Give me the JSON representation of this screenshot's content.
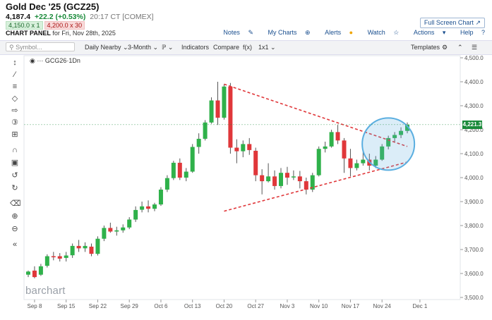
{
  "header": {
    "title": "Gold Dec '25 (GCZ25)",
    "last": "4,187.4",
    "change": "+22.2 (+0.53%)",
    "time": "20:17 CT [COMEX]",
    "bid": "4,150.0 x 1",
    "ask": "4,200.0 x 30",
    "panel_label": "CHART PANEL",
    "panel_date": "for Fri, Nov 28th, 2025",
    "fullscreen_label": "Full Screen Chart",
    "links": {
      "notes": "Notes",
      "mycharts": "My Charts",
      "alerts": "Alerts",
      "watch": "Watch",
      "actions": "Actions",
      "help": "Help"
    }
  },
  "toolbar": {
    "symbol_placeholder": "Symbol...",
    "period": "Daily Nearby",
    "range": "3-Month",
    "indicators": "Indicators",
    "compare": "Compare",
    "fx": "f(x)",
    "layout": "1x1",
    "templates": "Templates"
  },
  "legend": {
    "symbol": "GCG26",
    "interval": "1Dn"
  },
  "watermark": "barchart",
  "colors": {
    "up": "#2fb14a",
    "down": "#e0373a",
    "trendline": "#e0373a",
    "circle": "#5aaee0",
    "last_price": "#1a8a3a"
  },
  "chart_data": {
    "type": "candlestick",
    "symbol": "GCG26",
    "x_tick_labels": [
      "Sep 8",
      "Sep 15",
      "Sep 22",
      "Sep 29",
      "Oct 6",
      "Oct 13",
      "Oct 20",
      "Oct 27",
      "Nov 3",
      "Nov 10",
      "Nov 17",
      "Nov 24",
      "Dec 1"
    ],
    "y_tick_labels": [
      "3,500.0",
      "3,600.0",
      "3,700.0",
      "3,800.0",
      "3,900.0",
      "4,000.0",
      "4,100.0",
      "4,200.0",
      "4,300.0",
      "4,400.0",
      "4,500.0"
    ],
    "ylim": [
      3500,
      4500
    ],
    "last_price_label": "4,221.3",
    "candles": [
      {
        "date": "Sep 5",
        "o": 3595,
        "h": 3612,
        "l": 3585,
        "c": 3608
      },
      {
        "date": "Sep 8",
        "o": 3612,
        "h": 3630,
        "l": 3580,
        "c": 3585
      },
      {
        "date": "Sep 9",
        "o": 3595,
        "h": 3640,
        "l": 3590,
        "c": 3630
      },
      {
        "date": "Sep 10",
        "o": 3632,
        "h": 3680,
        "l": 3625,
        "c": 3672
      },
      {
        "date": "Sep 11",
        "o": 3672,
        "h": 3690,
        "l": 3655,
        "c": 3670
      },
      {
        "date": "Sep 12",
        "o": 3672,
        "h": 3685,
        "l": 3650,
        "c": 3662
      },
      {
        "date": "Sep 15",
        "o": 3665,
        "h": 3690,
        "l": 3650,
        "c": 3675
      },
      {
        "date": "Sep 16",
        "o": 3676,
        "h": 3725,
        "l": 3665,
        "c": 3715
      },
      {
        "date": "Sep 17",
        "o": 3715,
        "h": 3740,
        "l": 3690,
        "c": 3705
      },
      {
        "date": "Sep 18",
        "o": 3705,
        "h": 3730,
        "l": 3690,
        "c": 3715
      },
      {
        "date": "Sep 19",
        "o": 3712,
        "h": 3725,
        "l": 3672,
        "c": 3682
      },
      {
        "date": "Sep 22",
        "o": 3682,
        "h": 3755,
        "l": 3675,
        "c": 3745
      },
      {
        "date": "Sep 23",
        "o": 3745,
        "h": 3800,
        "l": 3735,
        "c": 3790
      },
      {
        "date": "Sep 24",
        "o": 3790,
        "h": 3812,
        "l": 3770,
        "c": 3775
      },
      {
        "date": "Sep 25",
        "o": 3775,
        "h": 3795,
        "l": 3758,
        "c": 3780
      },
      {
        "date": "Sep 26",
        "o": 3780,
        "h": 3805,
        "l": 3770,
        "c": 3792
      },
      {
        "date": "Sep 29",
        "o": 3792,
        "h": 3835,
        "l": 3785,
        "c": 3825
      },
      {
        "date": "Sep 30",
        "o": 3825,
        "h": 3880,
        "l": 3815,
        "c": 3865
      },
      {
        "date": "Oct 1",
        "o": 3866,
        "h": 3900,
        "l": 3855,
        "c": 3880
      },
      {
        "date": "Oct 2",
        "o": 3880,
        "h": 3905,
        "l": 3855,
        "c": 3870
      },
      {
        "date": "Oct 3",
        "o": 3870,
        "h": 3895,
        "l": 3860,
        "c": 3888
      },
      {
        "date": "Oct 6",
        "o": 3888,
        "h": 3960,
        "l": 3882,
        "c": 3950
      },
      {
        "date": "Oct 7",
        "o": 3950,
        "h": 4010,
        "l": 3940,
        "c": 3998
      },
      {
        "date": "Oct 8",
        "o": 3998,
        "h": 4070,
        "l": 3990,
        "c": 4062
      },
      {
        "date": "Oct 9",
        "o": 4062,
        "h": 4080,
        "l": 3990,
        "c": 4000
      },
      {
        "date": "Oct 10",
        "o": 4000,
        "h": 4040,
        "l": 3985,
        "c": 4025
      },
      {
        "date": "Oct 13",
        "o": 4025,
        "h": 4140,
        "l": 4020,
        "c": 4128
      },
      {
        "date": "Oct 14",
        "o": 4128,
        "h": 4185,
        "l": 4100,
        "c": 4162
      },
      {
        "date": "Oct 15",
        "o": 4162,
        "h": 4240,
        "l": 4155,
        "c": 4230
      },
      {
        "date": "Oct 16",
        "o": 4230,
        "h": 4335,
        "l": 4225,
        "c": 4322
      },
      {
        "date": "Oct 17",
        "o": 4322,
        "h": 4400,
        "l": 4220,
        "c": 4250
      },
      {
        "date": "Oct 20",
        "o": 4250,
        "h": 4390,
        "l": 4242,
        "c": 4380
      },
      {
        "date": "Oct 21",
        "o": 4380,
        "h": 4395,
        "l": 4100,
        "c": 4125
      },
      {
        "date": "Oct 22",
        "o": 4125,
        "h": 4160,
        "l": 4060,
        "c": 4110
      },
      {
        "date": "Oct 23",
        "o": 4110,
        "h": 4155,
        "l": 4085,
        "c": 4140
      },
      {
        "date": "Oct 24",
        "o": 4140,
        "h": 4165,
        "l": 4095,
        "c": 4115
      },
      {
        "date": "Oct 27",
        "o": 4112,
        "h": 4125,
        "l": 3985,
        "c": 4010
      },
      {
        "date": "Oct 28",
        "o": 4010,
        "h": 4035,
        "l": 3930,
        "c": 3985
      },
      {
        "date": "Oct 29",
        "o": 3985,
        "h": 4060,
        "l": 3980,
        "c": 4005
      },
      {
        "date": "Oct 30",
        "o": 4005,
        "h": 4030,
        "l": 3950,
        "c": 3965
      },
      {
        "date": "Oct 31",
        "o": 3965,
        "h": 4040,
        "l": 3955,
        "c": 4020
      },
      {
        "date": "Nov 3",
        "o": 4020,
        "h": 4045,
        "l": 3970,
        "c": 4000
      },
      {
        "date": "Nov 4",
        "o": 4002,
        "h": 4030,
        "l": 3990,
        "c": 4005
      },
      {
        "date": "Nov 5",
        "o": 4005,
        "h": 4028,
        "l": 3955,
        "c": 3985
      },
      {
        "date": "Nov 6",
        "o": 3985,
        "h": 4000,
        "l": 3930,
        "c": 3950
      },
      {
        "date": "Nov 7",
        "o": 3950,
        "h": 4020,
        "l": 3940,
        "c": 4010
      },
      {
        "date": "Nov 10",
        "o": 4010,
        "h": 4130,
        "l": 4005,
        "c": 4120
      },
      {
        "date": "Nov 11",
        "o": 4120,
        "h": 4150,
        "l": 4105,
        "c": 4130
      },
      {
        "date": "Nov 12",
        "o": 4130,
        "h": 4200,
        "l": 4125,
        "c": 4190
      },
      {
        "date": "Nov 13",
        "o": 4190,
        "h": 4220,
        "l": 4140,
        "c": 4155
      },
      {
        "date": "Nov 14",
        "o": 4155,
        "h": 4165,
        "l": 4020,
        "c": 4080
      },
      {
        "date": "Nov 17",
        "o": 4080,
        "h": 4120,
        "l": 4005,
        "c": 4040
      },
      {
        "date": "Nov 18",
        "o": 4040,
        "h": 4075,
        "l": 4030,
        "c": 4060
      },
      {
        "date": "Nov 19",
        "o": 4060,
        "h": 4110,
        "l": 4050,
        "c": 4075
      },
      {
        "date": "Nov 20",
        "o": 4075,
        "h": 4100,
        "l": 4030,
        "c": 4050
      },
      {
        "date": "Nov 21",
        "o": 4050,
        "h": 4090,
        "l": 4040,
        "c": 4075
      },
      {
        "date": "Nov 24",
        "o": 4075,
        "h": 4140,
        "l": 4070,
        "c": 4130
      },
      {
        "date": "Nov 25",
        "o": 4130,
        "h": 4175,
        "l": 4118,
        "c": 4165
      },
      {
        "date": "Nov 26",
        "o": 4165,
        "h": 4190,
        "l": 4150,
        "c": 4178
      },
      {
        "date": "Nov 27",
        "o": 4178,
        "h": 4210,
        "l": 4165,
        "c": 4195
      },
      {
        "date": "Nov 28",
        "o": 4195,
        "h": 4230,
        "l": 4185,
        "c": 4221
      }
    ],
    "annotations": {
      "triangle_upper": [
        {
          "date": "Oct 20",
          "price": 4390
        },
        {
          "date": "Nov 28",
          "price": 4130
        }
      ],
      "triangle_lower": [
        {
          "date": "Oct 20",
          "price": 3860
        },
        {
          "date": "Nov 28",
          "price": 4065
        }
      ],
      "breakout_circle": {
        "date": "Nov 25",
        "price": 4140
      }
    }
  }
}
